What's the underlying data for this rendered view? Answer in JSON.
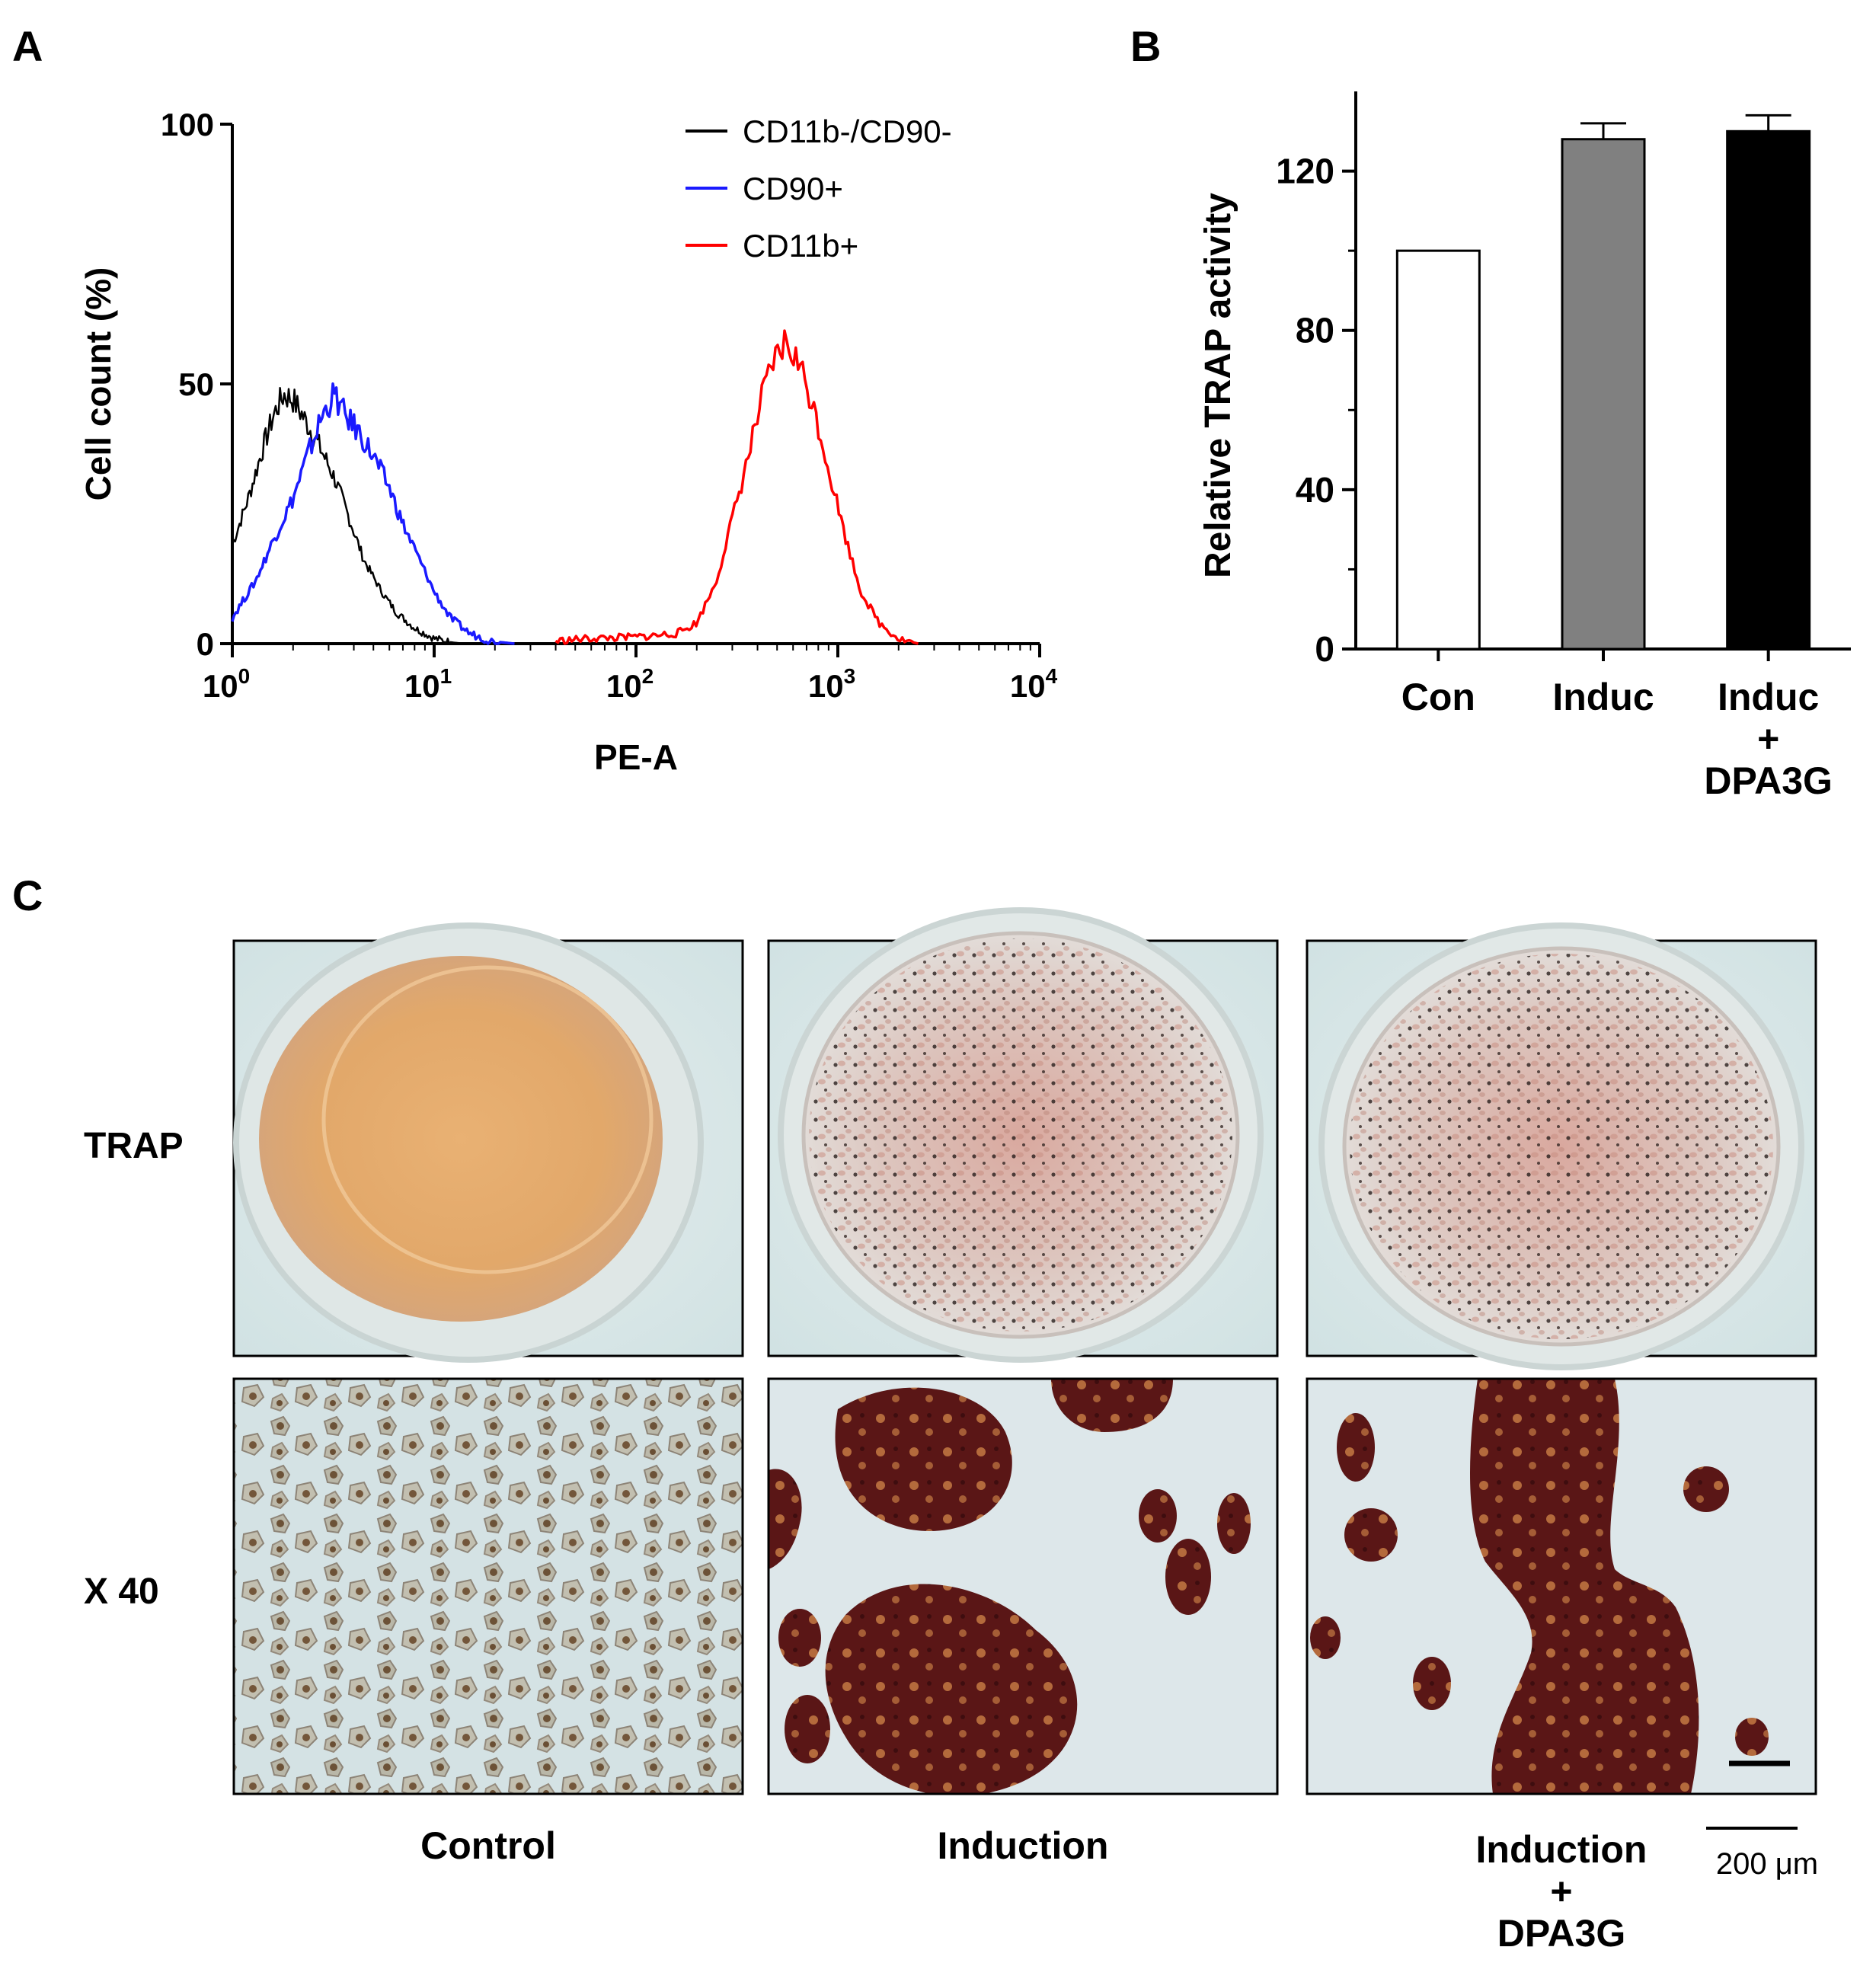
{
  "panels": {
    "a": "A",
    "b": "B",
    "c": "C"
  },
  "chart_data": [
    {
      "panel": "A",
      "type": "line",
      "xlabel": "PE-A",
      "ylabel": "Cell count (%)",
      "x_scale": "log",
      "xlim": [
        1,
        10000
      ],
      "ylim": [
        0,
        100
      ],
      "x_ticks": [
        {
          "base": "10",
          "exp": "0",
          "value": 1
        },
        {
          "base": "10",
          "exp": "1",
          "value": 10
        },
        {
          "base": "10",
          "exp": "2",
          "value": 100
        },
        {
          "base": "10",
          "exp": "3",
          "value": 1000
        },
        {
          "base": "10",
          "exp": "4",
          "value": 10000
        }
      ],
      "y_ticks": [
        "0",
        "50",
        "100"
      ],
      "legend_position": "top-right",
      "series": [
        {
          "name": "CD11b-/CD90-",
          "color": "#000000",
          "x": [
            1,
            1.2,
            1.4,
            1.6,
            1.8,
            2.0,
            2.3,
            2.7,
            3.2,
            3.8,
            4.5,
            5.5,
            6.5,
            8,
            10,
            12,
            14
          ],
          "y": [
            19,
            28,
            37,
            44,
            48,
            47,
            43,
            38,
            32,
            24,
            16,
            10,
            6,
            3,
            1,
            0.3,
            0
          ]
        },
        {
          "name": "CD90+",
          "color": "#1a1aff",
          "x": [
            1,
            1.3,
            1.6,
            2.0,
            2.4,
            2.8,
            3.2,
            3.6,
            4.2,
            5.0,
            6.0,
            7.0,
            8.5,
            10,
            12,
            15,
            19,
            25
          ],
          "y": [
            5,
            12,
            20,
            28,
            37,
            44,
            48,
            44,
            41,
            36,
            30,
            23,
            16,
            10,
            5,
            2,
            0.5,
            0
          ]
        },
        {
          "name": "CD11b+",
          "color": "#ff0000",
          "x": [
            40,
            60,
            90,
            120,
            160,
            200,
            250,
            300,
            360,
            420,
            480,
            550,
            620,
            700,
            800,
            950,
            1100,
            1300,
            1600,
            2000,
            2500
          ],
          "y": [
            0.5,
            1,
            1.2,
            1.5,
            2,
            4,
            12,
            24,
            36,
            47,
            54,
            58,
            55,
            50,
            42,
            30,
            20,
            10,
            4,
            1,
            0
          ]
        }
      ]
    },
    {
      "panel": "B",
      "type": "bar",
      "ylabel": "Relative TRAP activity",
      "ylim": [
        0,
        140
      ],
      "y_ticks": [
        "0",
        "40",
        "80",
        "120"
      ],
      "categories": [
        {
          "line1": "Con",
          "line2": "",
          "line3": ""
        },
        {
          "line1": "Induc",
          "line2": "",
          "line3": ""
        },
        {
          "line1": "Induc",
          "line2": "+",
          "line3": "DPA3G"
        }
      ],
      "values": [
        100,
        128,
        130
      ],
      "errors": [
        0,
        4,
        4
      ],
      "colors": [
        "#ffffff",
        "#808080",
        "#000000"
      ]
    }
  ],
  "panel_c": {
    "row_labels": [
      "TRAP",
      "X 40"
    ],
    "column_labels": [
      {
        "line1": "Control",
        "line2": "",
        "line3": ""
      },
      {
        "line1": "Induction",
        "line2": "",
        "line3": ""
      },
      {
        "line1": "Induction",
        "line2": "+",
        "line3": "DPA3G"
      }
    ],
    "scale_bar_label": "200 μm"
  }
}
